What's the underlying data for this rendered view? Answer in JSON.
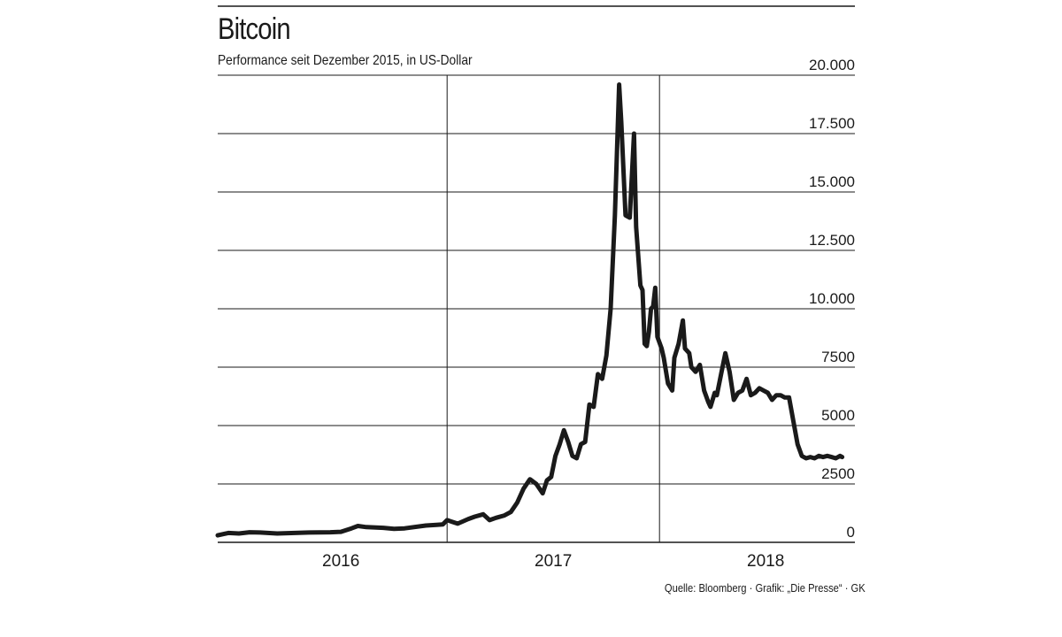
{
  "title": "Bitcoin",
  "subtitle": "Performance seit Dezember 2015, in US-Dollar",
  "source": "Quelle: Bloomberg · Grafik: „Die Presse“ · GK",
  "chart_data": {
    "type": "line",
    "title": "Bitcoin",
    "subtitle": "Performance seit Dezember 2015, in US-Dollar",
    "ylim": [
      0,
      20000
    ],
    "y_ticks": [
      {
        "value": 0,
        "label": "0"
      },
      {
        "value": 2500,
        "label": "2500"
      },
      {
        "value": 5000,
        "label": "5000"
      },
      {
        "value": 7500,
        "label": "7500"
      },
      {
        "value": 10000,
        "label": "10.000"
      },
      {
        "value": 12500,
        "label": "12.500"
      },
      {
        "value": 15000,
        "label": "15.000"
      },
      {
        "value": 17500,
        "label": "17.500"
      },
      {
        "value": 20000,
        "label": "20.000"
      }
    ],
    "xlim": [
      2015.92,
      2018.92
    ],
    "x_dividers": [
      2017.0,
      2018.0
    ],
    "x_tick_labels": [
      {
        "value": 2016.5,
        "label": "2016"
      },
      {
        "value": 2017.5,
        "label": "2017"
      },
      {
        "value": 2018.5,
        "label": "2018"
      }
    ],
    "grid": "horizontal",
    "line_color": "#1a1a1a",
    "x": [
      2015.92,
      2015.97,
      2016.02,
      2016.07,
      2016.12,
      2016.2,
      2016.35,
      2016.45,
      2016.5,
      2016.55,
      2016.58,
      2016.62,
      2016.7,
      2016.75,
      2016.8,
      2016.9,
      2016.95,
      2016.98,
      2017.0,
      2017.05,
      2017.1,
      2017.13,
      2017.17,
      2017.2,
      2017.23,
      2017.27,
      2017.3,
      2017.33,
      2017.36,
      2017.39,
      2017.42,
      2017.45,
      2017.47,
      2017.49,
      2017.51,
      2017.53,
      2017.55,
      2017.57,
      2017.59,
      2017.61,
      2017.63,
      2017.65,
      2017.67,
      2017.69,
      2017.71,
      2017.73,
      2017.75,
      2017.77,
      2017.79,
      2017.81,
      2017.82,
      2017.84,
      2017.86,
      2017.88,
      2017.89,
      2017.91,
      2017.92,
      2017.93,
      2017.94,
      2017.95,
      2017.96,
      2017.97,
      2017.98,
      2017.99,
      2018.01,
      2018.02,
      2018.04,
      2018.06,
      2018.07,
      2018.09,
      2018.11,
      2018.12,
      2018.14,
      2018.15,
      2018.17,
      2018.19,
      2018.21,
      2018.23,
      2018.24,
      2018.26,
      2018.27,
      2018.29,
      2018.31,
      2018.33,
      2018.35,
      2018.37,
      2018.39,
      2018.41,
      2018.43,
      2018.45,
      2018.47,
      2018.49,
      2018.51,
      2018.53,
      2018.55,
      2018.57,
      2018.59,
      2018.61,
      2018.63,
      2018.65,
      2018.67,
      2018.69,
      2018.71,
      2018.73,
      2018.75,
      2018.77,
      2018.79,
      2018.81,
      2018.83,
      2018.85,
      2018.86
    ],
    "y": [
      300,
      400,
      380,
      430,
      420,
      380,
      420,
      430,
      450,
      600,
      700,
      650,
      620,
      580,
      600,
      720,
      750,
      770,
      950,
      800,
      1000,
      1100,
      1200,
      950,
      1050,
      1150,
      1300,
      1700,
      2300,
      2700,
      2500,
      2100,
      2650,
      2800,
      3700,
      4200,
      4800,
      4300,
      3700,
      3600,
      4200,
      4300,
      5900,
      5800,
      7200,
      7000,
      8000,
      10000,
      14000,
      19600,
      18000,
      14000,
      13900,
      17500,
      13500,
      11000,
      10800,
      8500,
      8400,
      9000,
      10000,
      10100,
      10900,
      8800,
      8300,
      7900,
      6800,
      6500,
      7900,
      8500,
      9500,
      8300,
      8100,
      7500,
      7300,
      7600,
      6500,
      6000,
      5800,
      6400,
      6300,
      7200,
      8100,
      7300,
      6100,
      6400,
      6500,
      7000,
      6300,
      6400,
      6600,
      6500,
      6400,
      6100,
      6300,
      6300,
      6200,
      6200,
      5200,
      4200,
      3700,
      3600,
      3650,
      3600,
      3700,
      3650,
      3700,
      3650,
      3600,
      3700,
      3650
    ]
  }
}
